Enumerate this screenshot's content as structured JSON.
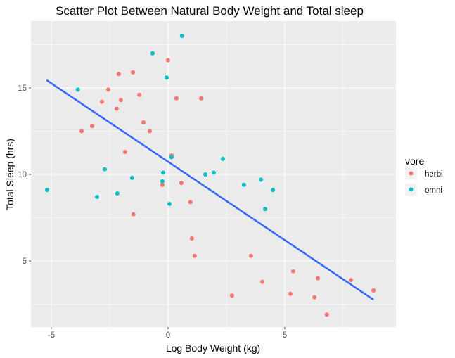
{
  "chart_data": {
    "type": "scatter",
    "title": "Scatter Plot Between Natural Body Weight and Total sleep",
    "xlabel": "Log Body Weight (kg)",
    "ylabel": "Total Sleep (hrs)",
    "xlim": [
      -5.87,
      9.76
    ],
    "ylim": [
      1.18,
      18.86
    ],
    "x_ticks": [
      -5,
      0,
      5
    ],
    "y_ticks": [
      5,
      10,
      15
    ],
    "grid": true,
    "legend": {
      "title": "vore",
      "placement": "right"
    },
    "series": [
      {
        "name": "herbi",
        "color": "#F8766D",
        "points": [
          [
            0.0,
            16.6
          ],
          [
            -1.5,
            15.9
          ],
          [
            -2.11,
            15.8
          ],
          [
            -2.56,
            14.9
          ],
          [
            -1.23,
            14.6
          ],
          [
            -2.02,
            14.3
          ],
          [
            -2.83,
            14.2
          ],
          [
            -2.2,
            13.8
          ],
          [
            0.36,
            14.4
          ],
          [
            1.42,
            14.4
          ],
          [
            -1.05,
            13.0
          ],
          [
            -3.25,
            12.8
          ],
          [
            -3.7,
            12.5
          ],
          [
            -0.78,
            12.5
          ],
          [
            -1.84,
            11.3
          ],
          [
            0.15,
            11.1
          ],
          [
            0.57,
            9.5
          ],
          [
            -0.24,
            9.4
          ],
          [
            0.96,
            8.4
          ],
          [
            -1.48,
            7.7
          ],
          [
            1.02,
            6.3
          ],
          [
            1.14,
            5.3
          ],
          [
            3.55,
            5.3
          ],
          [
            5.36,
            4.4
          ],
          [
            6.42,
            4.0
          ],
          [
            7.83,
            3.9
          ],
          [
            8.8,
            3.3
          ],
          [
            4.04,
            3.8
          ],
          [
            2.74,
            3.0
          ],
          [
            5.24,
            3.1
          ],
          [
            6.27,
            2.9
          ],
          [
            6.8,
            1.9
          ]
        ]
      },
      {
        "name": "omni",
        "color": "#00BFC4",
        "points": [
          [
            0.6,
            18.0
          ],
          [
            -0.66,
            17.0
          ],
          [
            -0.06,
            15.6
          ],
          [
            -3.86,
            14.9
          ],
          [
            -5.18,
            9.1
          ],
          [
            -2.71,
            10.3
          ],
          [
            -3.04,
            8.7
          ],
          [
            -2.17,
            8.9
          ],
          [
            -1.54,
            9.8
          ],
          [
            -0.21,
            10.1
          ],
          [
            -0.24,
            9.6
          ],
          [
            0.06,
            8.3
          ],
          [
            0.15,
            11.0
          ],
          [
            1.6,
            10.0
          ],
          [
            1.96,
            10.1
          ],
          [
            2.35,
            10.9
          ],
          [
            3.25,
            9.4
          ],
          [
            3.98,
            9.7
          ],
          [
            4.49,
            9.1
          ],
          [
            4.16,
            8.0
          ]
        ]
      }
    ],
    "fit_line": {
      "color": "#3366FF",
      "x": [
        -5.2,
        8.8
      ],
      "y": [
        15.45,
        2.76
      ]
    }
  }
}
